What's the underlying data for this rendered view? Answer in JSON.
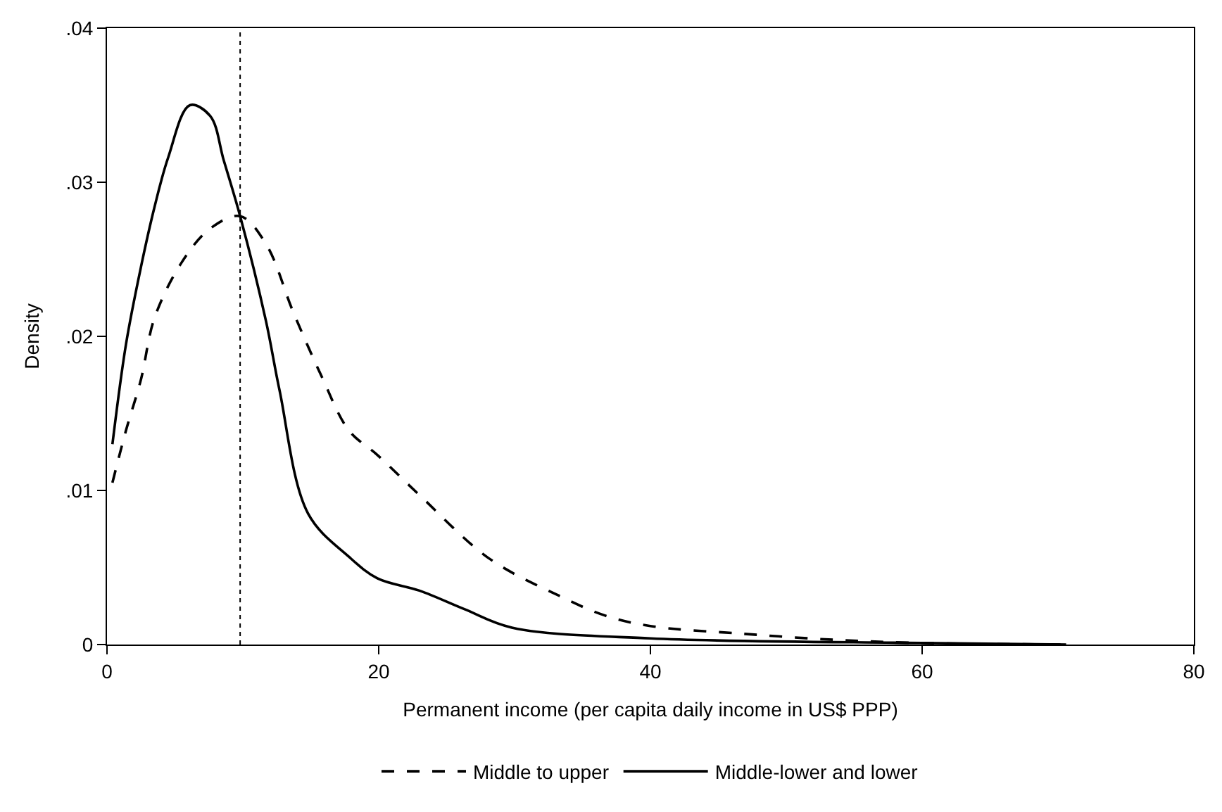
{
  "chart_data": {
    "type": "line",
    "xlabel": "Permanent income (per capita daily income in US$ PPP)",
    "ylabel": "Density",
    "xlim": [
      0,
      80
    ],
    "xticks": [
      0,
      20,
      40,
      60,
      80
    ],
    "ylim": [
      0,
      0.04
    ],
    "yticks": [
      {
        "value": 0,
        "label": "0"
      },
      {
        "value": 0.01,
        "label": ".01"
      },
      {
        "value": 0.02,
        "label": ".02"
      },
      {
        "value": 0.03,
        "label": ".03"
      },
      {
        "value": 0.04,
        "label": ".04"
      }
    ],
    "legend": "bottom",
    "marker": "none",
    "ref_lines": [
      {
        "axis": "x",
        "value": 9.8,
        "color": "#000000",
        "line_style": "dotted"
      }
    ],
    "series": [
      {
        "name": "Middle to upper",
        "color": "#000000",
        "line_style": "dashed",
        "x": [
          0.4,
          1.4,
          2.5,
          3.5,
          5.5,
          7.6,
          9.8,
          11.7,
          13.7,
          15.8,
          17.8,
          19.9,
          23,
          28.1,
          33.2,
          36.6,
          40,
          46.8,
          53.7,
          60,
          70.6
        ],
        "values": [
          0.0105,
          0.0139,
          0.0172,
          0.0212,
          0.0248,
          0.027,
          0.0278,
          0.026,
          0.0216,
          0.0174,
          0.0139,
          0.0123,
          0.0097,
          0.0056,
          0.0032,
          0.0019,
          0.0012,
          0.0007,
          0.0003,
          0.0001,
          0
        ]
      },
      {
        "name": "Middle-lower and lower",
        "color": "#000000",
        "line_style": "solid",
        "x": [
          0.4,
          1.4,
          2.5,
          3.5,
          4.5,
          6.1,
          7.6,
          8.6,
          9.8,
          11.7,
          12.7,
          14.8,
          17.8,
          19.9,
          23,
          26.3,
          29.8,
          40,
          60,
          70.6
        ],
        "values": [
          0.013,
          0.0195,
          0.0245,
          0.0284,
          0.0316,
          0.035,
          0.0343,
          0.0314,
          0.0278,
          0.021,
          0.0165,
          0.0085,
          0.0057,
          0.0043,
          0.0035,
          0.0023,
          0.0011,
          0.0004,
          0.0001,
          0
        ]
      }
    ]
  }
}
